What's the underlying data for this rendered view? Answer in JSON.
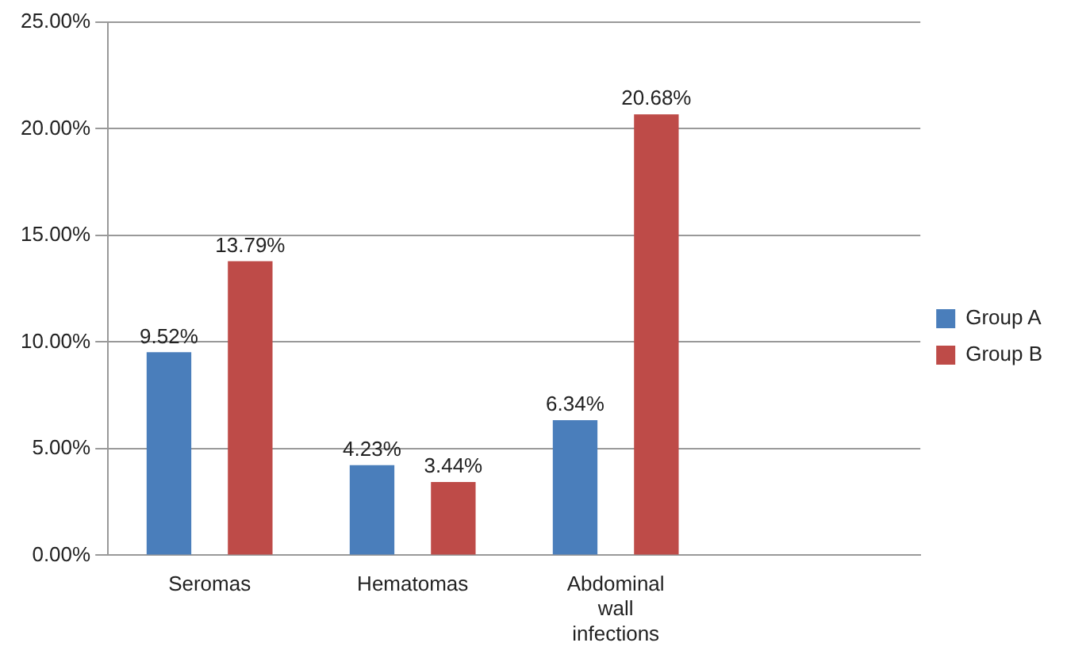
{
  "chart_data": {
    "type": "bar",
    "categories": [
      "Seromas",
      "Hematomas",
      "Abdominal wall infections",
      null
    ],
    "series": [
      {
        "name": "Group A",
        "color": "#4a7ebb",
        "values": [
          9.52,
          4.23,
          6.34,
          null
        ],
        "value_labels": [
          "9.52%",
          "4.23%",
          "6.34%",
          null
        ]
      },
      {
        "name": "Group B",
        "color": "#be4b48",
        "values": [
          13.79,
          3.44,
          20.68,
          null
        ],
        "value_labels": [
          "13.79%",
          "3.44%",
          "20.68%",
          null
        ]
      }
    ],
    "ylim": [
      0,
      25
    ],
    "yticks": [
      {
        "value": 0,
        "label": "0.00%"
      },
      {
        "value": 5,
        "label": "5.00%"
      },
      {
        "value": 10,
        "label": "10.00%"
      },
      {
        "value": 15,
        "label": "15.00%"
      },
      {
        "value": 20,
        "label": "20.00%"
      },
      {
        "value": 25,
        "label": "25.00%"
      }
    ],
    "grid": "y",
    "legend": "right"
  }
}
